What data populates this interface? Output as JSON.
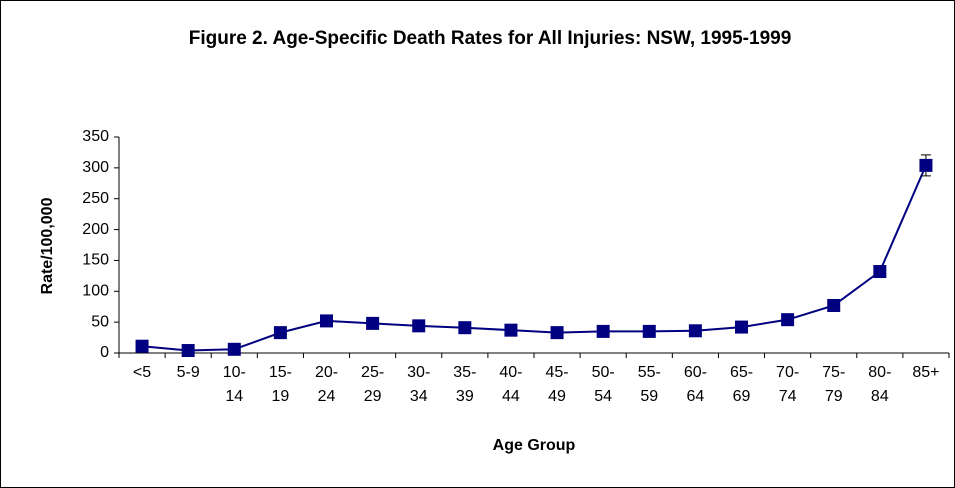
{
  "chart_data": {
    "type": "line",
    "title": "Figure 2.  Age-Specific Death Rates for All Injuries: NSW, 1995-1999",
    "xlabel": "Age Group",
    "ylabel": "Rate/100,000",
    "categories": [
      "<5",
      "5-9",
      "10-14",
      "15-19",
      "20-24",
      "25-29",
      "30-34",
      "35-39",
      "40-44",
      "45-49",
      "50-54",
      "55-59",
      "60-64",
      "65-69",
      "70-74",
      "75-79",
      "80-84",
      "85+"
    ],
    "series": [
      {
        "color": "#000080",
        "values": [
          11,
          4,
          6,
          33,
          52,
          48,
          44,
          41,
          37,
          33,
          35,
          35,
          36,
          42,
          54,
          77,
          132,
          304
        ],
        "errors": [
          2,
          1,
          1,
          2,
          2,
          2,
          2,
          2,
          2,
          2,
          2,
          2,
          2,
          3,
          3,
          4,
          6,
          17
        ]
      }
    ],
    "ylim": [
      0,
      350
    ],
    "yticks": [
      0,
      50,
      100,
      150,
      200,
      250,
      300,
      350
    ],
    "grid": false
  }
}
